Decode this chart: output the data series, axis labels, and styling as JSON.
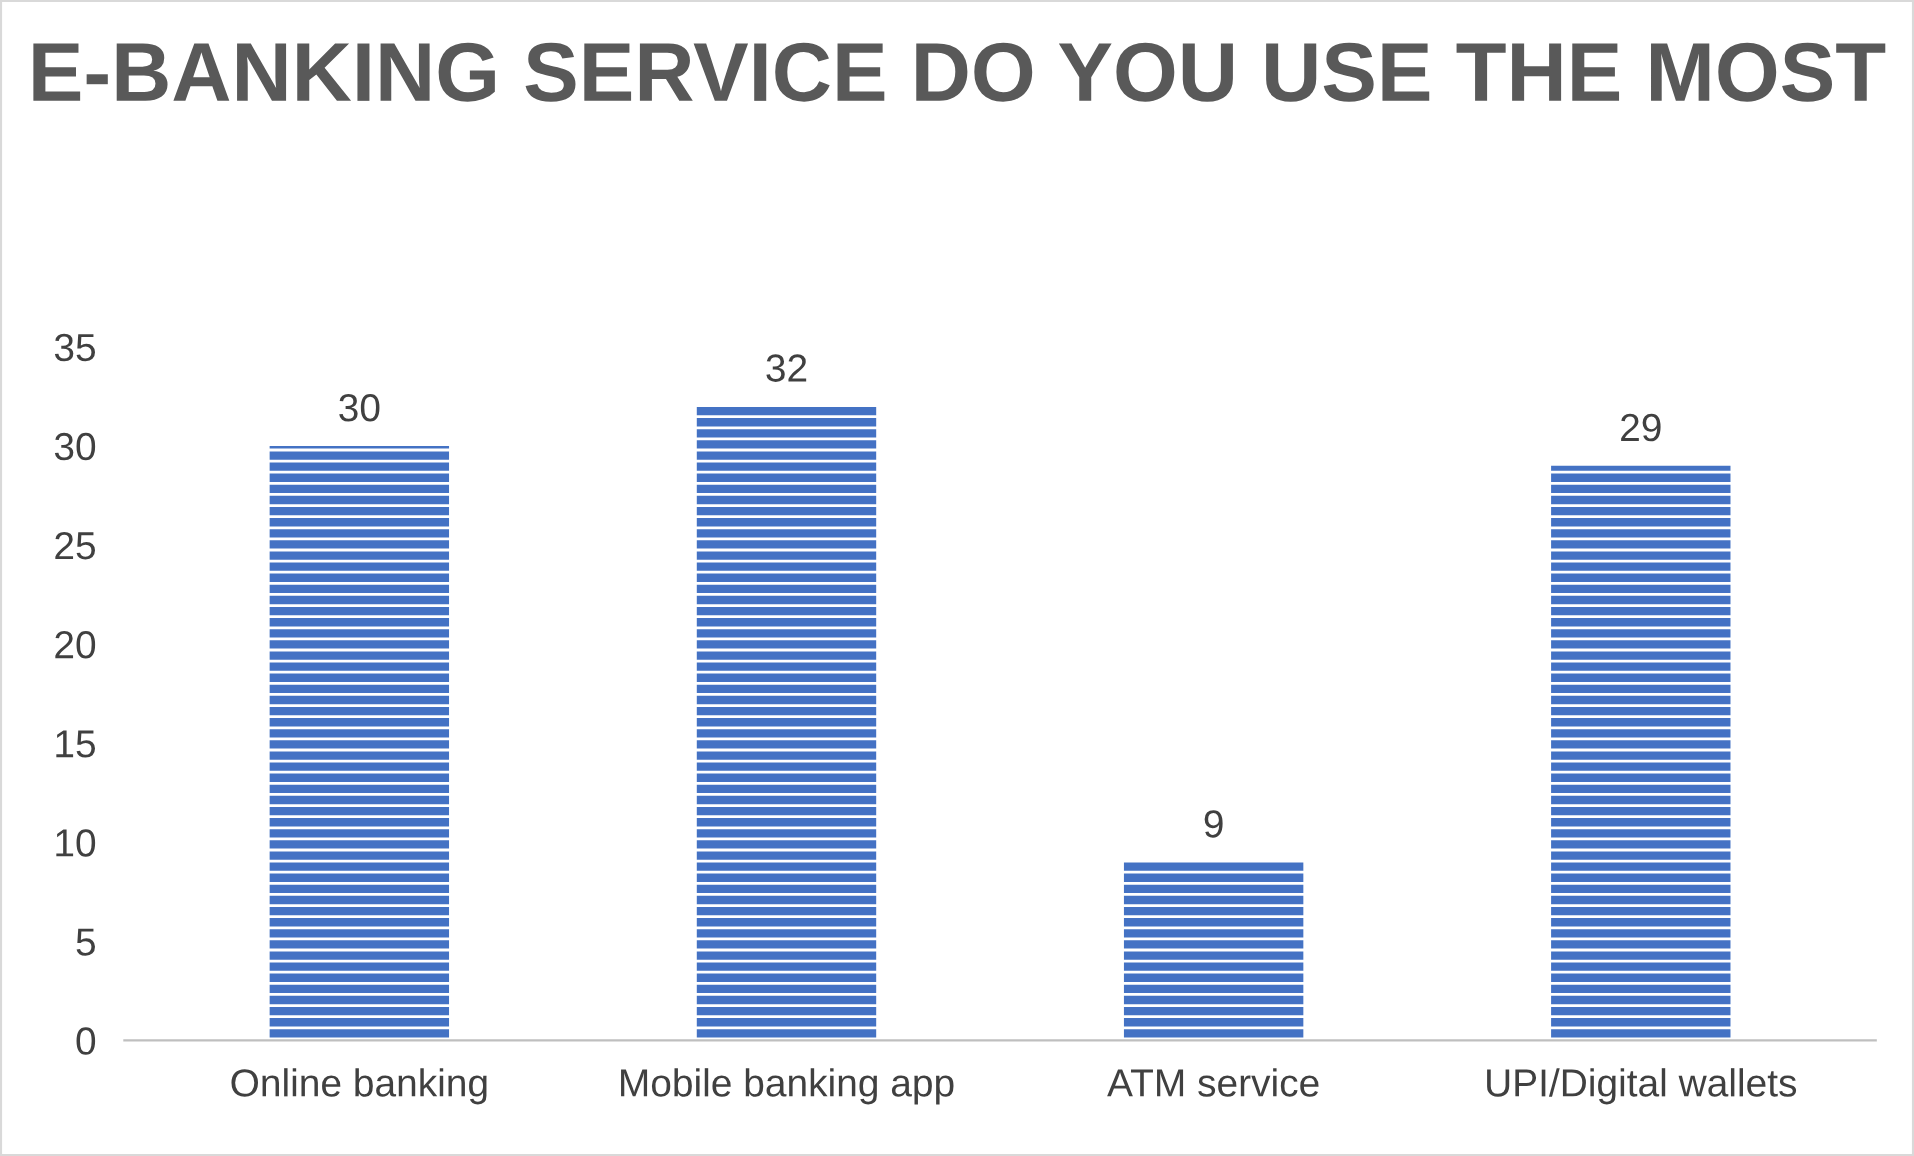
{
  "chart_data": {
    "type": "bar",
    "title": "E-BANKING SERVICE DO YOU USE THE MOST",
    "categories": [
      "Online banking",
      "Mobile banking app",
      "ATM service",
      "UPI/Digital wallets"
    ],
    "values": [
      30,
      32,
      9,
      29
    ],
    "color": "#4472c4",
    "ylim": [
      0,
      35
    ],
    "yticks": [
      0,
      5,
      10,
      15,
      20,
      25,
      30,
      35
    ],
    "grid": false,
    "data_labels": true
  }
}
